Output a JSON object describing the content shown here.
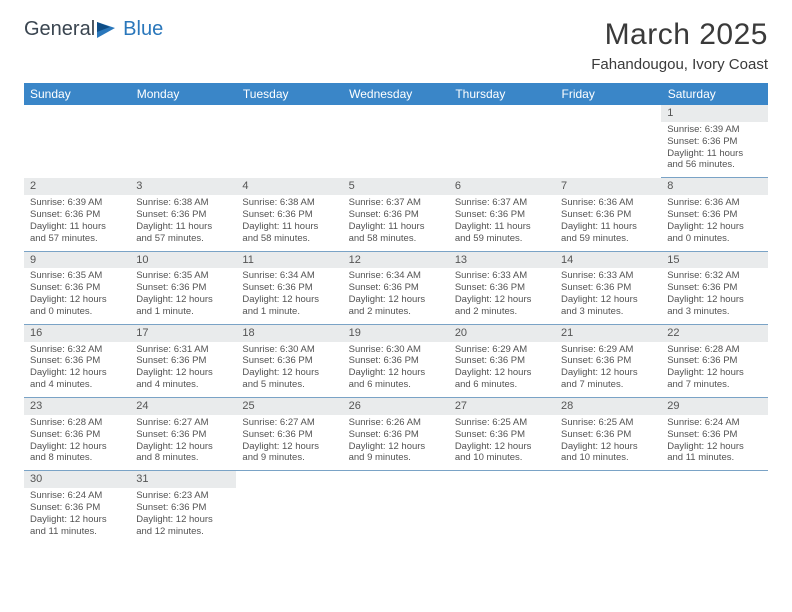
{
  "brand": {
    "part1": "General",
    "part2": "Blue"
  },
  "title": "March 2025",
  "location": "Fahandougou, Ivory Coast",
  "weekdays": [
    "Sunday",
    "Monday",
    "Tuesday",
    "Wednesday",
    "Thursday",
    "Friday",
    "Saturday"
  ],
  "colors": {
    "header_bg": "#3a86c8",
    "header_text": "#ffffff",
    "daynum_bg": "#e9ebec",
    "rule": "#7aa3c6",
    "brand_blue": "#2a77bb",
    "text": "#3a3a3a"
  },
  "weeks": [
    [
      null,
      null,
      null,
      null,
      null,
      null,
      {
        "n": "1",
        "sr": "Sunrise: 6:39 AM",
        "ss": "Sunset: 6:36 PM",
        "d1": "Daylight: 11 hours",
        "d2": "and 56 minutes."
      }
    ],
    [
      {
        "n": "2",
        "sr": "Sunrise: 6:39 AM",
        "ss": "Sunset: 6:36 PM",
        "d1": "Daylight: 11 hours",
        "d2": "and 57 minutes."
      },
      {
        "n": "3",
        "sr": "Sunrise: 6:38 AM",
        "ss": "Sunset: 6:36 PM",
        "d1": "Daylight: 11 hours",
        "d2": "and 57 minutes."
      },
      {
        "n": "4",
        "sr": "Sunrise: 6:38 AM",
        "ss": "Sunset: 6:36 PM",
        "d1": "Daylight: 11 hours",
        "d2": "and 58 minutes."
      },
      {
        "n": "5",
        "sr": "Sunrise: 6:37 AM",
        "ss": "Sunset: 6:36 PM",
        "d1": "Daylight: 11 hours",
        "d2": "and 58 minutes."
      },
      {
        "n": "6",
        "sr": "Sunrise: 6:37 AM",
        "ss": "Sunset: 6:36 PM",
        "d1": "Daylight: 11 hours",
        "d2": "and 59 minutes."
      },
      {
        "n": "7",
        "sr": "Sunrise: 6:36 AM",
        "ss": "Sunset: 6:36 PM",
        "d1": "Daylight: 11 hours",
        "d2": "and 59 minutes."
      },
      {
        "n": "8",
        "sr": "Sunrise: 6:36 AM",
        "ss": "Sunset: 6:36 PM",
        "d1": "Daylight: 12 hours",
        "d2": "and 0 minutes."
      }
    ],
    [
      {
        "n": "9",
        "sr": "Sunrise: 6:35 AM",
        "ss": "Sunset: 6:36 PM",
        "d1": "Daylight: 12 hours",
        "d2": "and 0 minutes."
      },
      {
        "n": "10",
        "sr": "Sunrise: 6:35 AM",
        "ss": "Sunset: 6:36 PM",
        "d1": "Daylight: 12 hours",
        "d2": "and 1 minute."
      },
      {
        "n": "11",
        "sr": "Sunrise: 6:34 AM",
        "ss": "Sunset: 6:36 PM",
        "d1": "Daylight: 12 hours",
        "d2": "and 1 minute."
      },
      {
        "n": "12",
        "sr": "Sunrise: 6:34 AM",
        "ss": "Sunset: 6:36 PM",
        "d1": "Daylight: 12 hours",
        "d2": "and 2 minutes."
      },
      {
        "n": "13",
        "sr": "Sunrise: 6:33 AM",
        "ss": "Sunset: 6:36 PM",
        "d1": "Daylight: 12 hours",
        "d2": "and 2 minutes."
      },
      {
        "n": "14",
        "sr": "Sunrise: 6:33 AM",
        "ss": "Sunset: 6:36 PM",
        "d1": "Daylight: 12 hours",
        "d2": "and 3 minutes."
      },
      {
        "n": "15",
        "sr": "Sunrise: 6:32 AM",
        "ss": "Sunset: 6:36 PM",
        "d1": "Daylight: 12 hours",
        "d2": "and 3 minutes."
      }
    ],
    [
      {
        "n": "16",
        "sr": "Sunrise: 6:32 AM",
        "ss": "Sunset: 6:36 PM",
        "d1": "Daylight: 12 hours",
        "d2": "and 4 minutes."
      },
      {
        "n": "17",
        "sr": "Sunrise: 6:31 AM",
        "ss": "Sunset: 6:36 PM",
        "d1": "Daylight: 12 hours",
        "d2": "and 4 minutes."
      },
      {
        "n": "18",
        "sr": "Sunrise: 6:30 AM",
        "ss": "Sunset: 6:36 PM",
        "d1": "Daylight: 12 hours",
        "d2": "and 5 minutes."
      },
      {
        "n": "19",
        "sr": "Sunrise: 6:30 AM",
        "ss": "Sunset: 6:36 PM",
        "d1": "Daylight: 12 hours",
        "d2": "and 6 minutes."
      },
      {
        "n": "20",
        "sr": "Sunrise: 6:29 AM",
        "ss": "Sunset: 6:36 PM",
        "d1": "Daylight: 12 hours",
        "d2": "and 6 minutes."
      },
      {
        "n": "21",
        "sr": "Sunrise: 6:29 AM",
        "ss": "Sunset: 6:36 PM",
        "d1": "Daylight: 12 hours",
        "d2": "and 7 minutes."
      },
      {
        "n": "22",
        "sr": "Sunrise: 6:28 AM",
        "ss": "Sunset: 6:36 PM",
        "d1": "Daylight: 12 hours",
        "d2": "and 7 minutes."
      }
    ],
    [
      {
        "n": "23",
        "sr": "Sunrise: 6:28 AM",
        "ss": "Sunset: 6:36 PM",
        "d1": "Daylight: 12 hours",
        "d2": "and 8 minutes."
      },
      {
        "n": "24",
        "sr": "Sunrise: 6:27 AM",
        "ss": "Sunset: 6:36 PM",
        "d1": "Daylight: 12 hours",
        "d2": "and 8 minutes."
      },
      {
        "n": "25",
        "sr": "Sunrise: 6:27 AM",
        "ss": "Sunset: 6:36 PM",
        "d1": "Daylight: 12 hours",
        "d2": "and 9 minutes."
      },
      {
        "n": "26",
        "sr": "Sunrise: 6:26 AM",
        "ss": "Sunset: 6:36 PM",
        "d1": "Daylight: 12 hours",
        "d2": "and 9 minutes."
      },
      {
        "n": "27",
        "sr": "Sunrise: 6:25 AM",
        "ss": "Sunset: 6:36 PM",
        "d1": "Daylight: 12 hours",
        "d2": "and 10 minutes."
      },
      {
        "n": "28",
        "sr": "Sunrise: 6:25 AM",
        "ss": "Sunset: 6:36 PM",
        "d1": "Daylight: 12 hours",
        "d2": "and 10 minutes."
      },
      {
        "n": "29",
        "sr": "Sunrise: 6:24 AM",
        "ss": "Sunset: 6:36 PM",
        "d1": "Daylight: 12 hours",
        "d2": "and 11 minutes."
      }
    ],
    [
      {
        "n": "30",
        "sr": "Sunrise: 6:24 AM",
        "ss": "Sunset: 6:36 PM",
        "d1": "Daylight: 12 hours",
        "d2": "and 11 minutes."
      },
      {
        "n": "31",
        "sr": "Sunrise: 6:23 AM",
        "ss": "Sunset: 6:36 PM",
        "d1": "Daylight: 12 hours",
        "d2": "and 12 minutes."
      },
      null,
      null,
      null,
      null,
      null
    ]
  ]
}
